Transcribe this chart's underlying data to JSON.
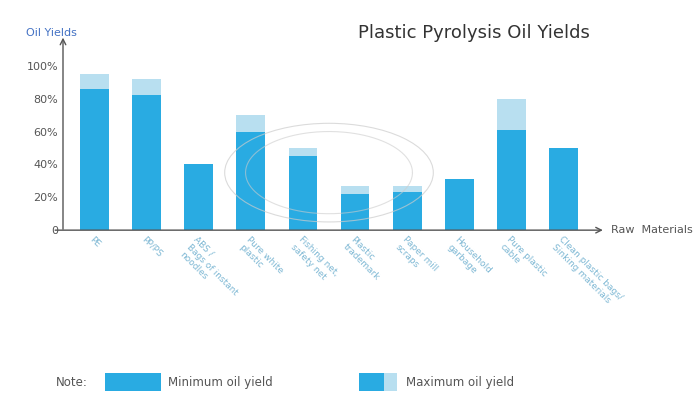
{
  "title": "Plastic Pyrolysis Oil Yields",
  "ylabel": "Oil Yields",
  "xlabel": "Raw  Materials",
  "categories": [
    "PE",
    "PP/PS",
    "ABS /\nBags of instant\nnoodles",
    "Pure white\nplastic",
    "Fishing net,\nsafety net",
    "Plastic\ntrademark",
    "Paper mill\nscraps",
    "Household\ngarbage",
    "Pure plastic\ncable",
    "Clean plastic bags/\nSinking materials"
  ],
  "min_values": [
    86,
    82,
    40,
    60,
    45,
    22,
    23,
    31,
    61,
    50
  ],
  "max_values": [
    95,
    92,
    40,
    70,
    50,
    27,
    27,
    31,
    80,
    50
  ],
  "bar_color": "#29ABE2",
  "max_extra_color": "#B8DFF0",
  "background_color": "#FFFFFF",
  "yticks": [
    0,
    20,
    40,
    60,
    80,
    100
  ],
  "ytick_labels": [
    "0",
    "20%",
    "40%",
    "60%",
    "80%",
    "100%"
  ],
  "note_text": "Note:",
  "legend_min": "Minimum oil yield",
  "legend_max": "Maximum oil yield",
  "title_fontsize": 13,
  "axis_label_fontsize": 8,
  "tick_fontsize": 8,
  "bar_width": 0.55
}
